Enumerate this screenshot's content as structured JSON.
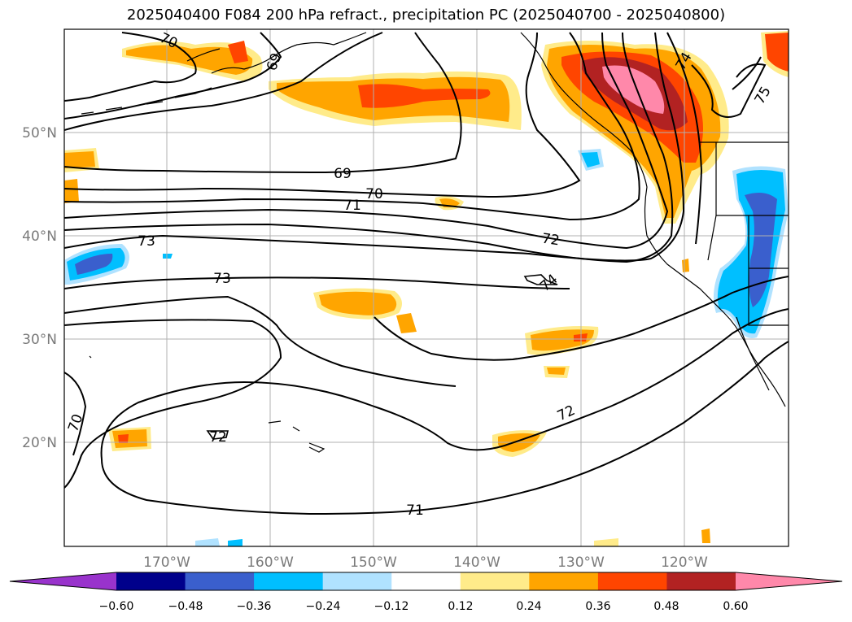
{
  "title": "2025040400 F084 200 hPa refract., precipitation PC (2025040700 - 2025040800)",
  "lat_labels": [
    "50°N",
    "40°N",
    "30°N",
    "20°N"
  ],
  "lon_labels": [
    "170°W",
    "160°W",
    "150°W",
    "140°W",
    "130°W",
    "120°W"
  ],
  "contour_labels": [
    "70",
    "69",
    "69",
    "70",
    "71",
    "73",
    "73",
    "72",
    "74",
    "72",
    "72",
    "71",
    "70",
    "74",
    "75"
  ],
  "colorbar": {
    "ticks": [
      "−0.60",
      "−0.48",
      "−0.36",
      "−0.24",
      "−0.12",
      "0.12",
      "0.24",
      "0.36",
      "0.48",
      "0.60"
    ],
    "colors": [
      "#9933cc",
      "#00008b",
      "#3a5fcd",
      "#00bfff",
      "#b0e2ff",
      "#ffffff",
      "#ffeb8a",
      "#ffa500",
      "#ff4500",
      "#b22222",
      "#ff88aa"
    ]
  }
}
